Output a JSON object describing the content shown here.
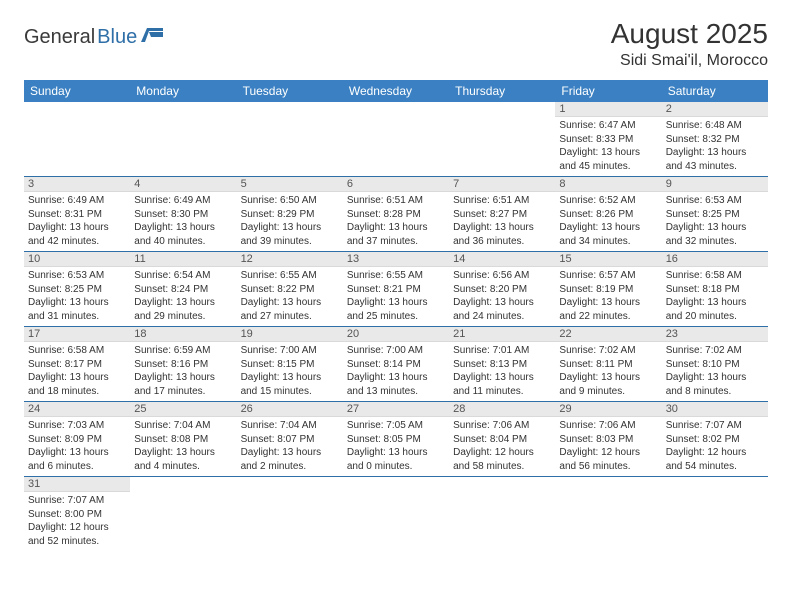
{
  "logo": {
    "text_dark": "General",
    "text_blue": "Blue"
  },
  "title": "August 2025",
  "location": "Sidi Smai'il, Morocco",
  "colors": {
    "header_bg": "#3a80c2",
    "header_text": "#ffffff",
    "daynum_bg": "#e9e9e9",
    "week_separator": "#2f6fa8",
    "logo_dark": "#3a3a3a",
    "logo_blue": "#2f6fa8"
  },
  "weekdays": [
    "Sunday",
    "Monday",
    "Tuesday",
    "Wednesday",
    "Thursday",
    "Friday",
    "Saturday"
  ],
  "weeks": [
    [
      {
        "empty": true
      },
      {
        "empty": true
      },
      {
        "empty": true
      },
      {
        "empty": true
      },
      {
        "empty": true
      },
      {
        "num": "1",
        "sunrise": "Sunrise: 6:47 AM",
        "sunset": "Sunset: 8:33 PM",
        "day1": "Daylight: 13 hours",
        "day2": "and 45 minutes."
      },
      {
        "num": "2",
        "sunrise": "Sunrise: 6:48 AM",
        "sunset": "Sunset: 8:32 PM",
        "day1": "Daylight: 13 hours",
        "day2": "and 43 minutes."
      }
    ],
    [
      {
        "num": "3",
        "sunrise": "Sunrise: 6:49 AM",
        "sunset": "Sunset: 8:31 PM",
        "day1": "Daylight: 13 hours",
        "day2": "and 42 minutes."
      },
      {
        "num": "4",
        "sunrise": "Sunrise: 6:49 AM",
        "sunset": "Sunset: 8:30 PM",
        "day1": "Daylight: 13 hours",
        "day2": "and 40 minutes."
      },
      {
        "num": "5",
        "sunrise": "Sunrise: 6:50 AM",
        "sunset": "Sunset: 8:29 PM",
        "day1": "Daylight: 13 hours",
        "day2": "and 39 minutes."
      },
      {
        "num": "6",
        "sunrise": "Sunrise: 6:51 AM",
        "sunset": "Sunset: 8:28 PM",
        "day1": "Daylight: 13 hours",
        "day2": "and 37 minutes."
      },
      {
        "num": "7",
        "sunrise": "Sunrise: 6:51 AM",
        "sunset": "Sunset: 8:27 PM",
        "day1": "Daylight: 13 hours",
        "day2": "and 36 minutes."
      },
      {
        "num": "8",
        "sunrise": "Sunrise: 6:52 AM",
        "sunset": "Sunset: 8:26 PM",
        "day1": "Daylight: 13 hours",
        "day2": "and 34 minutes."
      },
      {
        "num": "9",
        "sunrise": "Sunrise: 6:53 AM",
        "sunset": "Sunset: 8:25 PM",
        "day1": "Daylight: 13 hours",
        "day2": "and 32 minutes."
      }
    ],
    [
      {
        "num": "10",
        "sunrise": "Sunrise: 6:53 AM",
        "sunset": "Sunset: 8:25 PM",
        "day1": "Daylight: 13 hours",
        "day2": "and 31 minutes."
      },
      {
        "num": "11",
        "sunrise": "Sunrise: 6:54 AM",
        "sunset": "Sunset: 8:24 PM",
        "day1": "Daylight: 13 hours",
        "day2": "and 29 minutes."
      },
      {
        "num": "12",
        "sunrise": "Sunrise: 6:55 AM",
        "sunset": "Sunset: 8:22 PM",
        "day1": "Daylight: 13 hours",
        "day2": "and 27 minutes."
      },
      {
        "num": "13",
        "sunrise": "Sunrise: 6:55 AM",
        "sunset": "Sunset: 8:21 PM",
        "day1": "Daylight: 13 hours",
        "day2": "and 25 minutes."
      },
      {
        "num": "14",
        "sunrise": "Sunrise: 6:56 AM",
        "sunset": "Sunset: 8:20 PM",
        "day1": "Daylight: 13 hours",
        "day2": "and 24 minutes."
      },
      {
        "num": "15",
        "sunrise": "Sunrise: 6:57 AM",
        "sunset": "Sunset: 8:19 PM",
        "day1": "Daylight: 13 hours",
        "day2": "and 22 minutes."
      },
      {
        "num": "16",
        "sunrise": "Sunrise: 6:58 AM",
        "sunset": "Sunset: 8:18 PM",
        "day1": "Daylight: 13 hours",
        "day2": "and 20 minutes."
      }
    ],
    [
      {
        "num": "17",
        "sunrise": "Sunrise: 6:58 AM",
        "sunset": "Sunset: 8:17 PM",
        "day1": "Daylight: 13 hours",
        "day2": "and 18 minutes."
      },
      {
        "num": "18",
        "sunrise": "Sunrise: 6:59 AM",
        "sunset": "Sunset: 8:16 PM",
        "day1": "Daylight: 13 hours",
        "day2": "and 17 minutes."
      },
      {
        "num": "19",
        "sunrise": "Sunrise: 7:00 AM",
        "sunset": "Sunset: 8:15 PM",
        "day1": "Daylight: 13 hours",
        "day2": "and 15 minutes."
      },
      {
        "num": "20",
        "sunrise": "Sunrise: 7:00 AM",
        "sunset": "Sunset: 8:14 PM",
        "day1": "Daylight: 13 hours",
        "day2": "and 13 minutes."
      },
      {
        "num": "21",
        "sunrise": "Sunrise: 7:01 AM",
        "sunset": "Sunset: 8:13 PM",
        "day1": "Daylight: 13 hours",
        "day2": "and 11 minutes."
      },
      {
        "num": "22",
        "sunrise": "Sunrise: 7:02 AM",
        "sunset": "Sunset: 8:11 PM",
        "day1": "Daylight: 13 hours",
        "day2": "and 9 minutes."
      },
      {
        "num": "23",
        "sunrise": "Sunrise: 7:02 AM",
        "sunset": "Sunset: 8:10 PM",
        "day1": "Daylight: 13 hours",
        "day2": "and 8 minutes."
      }
    ],
    [
      {
        "num": "24",
        "sunrise": "Sunrise: 7:03 AM",
        "sunset": "Sunset: 8:09 PM",
        "day1": "Daylight: 13 hours",
        "day2": "and 6 minutes."
      },
      {
        "num": "25",
        "sunrise": "Sunrise: 7:04 AM",
        "sunset": "Sunset: 8:08 PM",
        "day1": "Daylight: 13 hours",
        "day2": "and 4 minutes."
      },
      {
        "num": "26",
        "sunrise": "Sunrise: 7:04 AM",
        "sunset": "Sunset: 8:07 PM",
        "day1": "Daylight: 13 hours",
        "day2": "and 2 minutes."
      },
      {
        "num": "27",
        "sunrise": "Sunrise: 7:05 AM",
        "sunset": "Sunset: 8:05 PM",
        "day1": "Daylight: 13 hours",
        "day2": "and 0 minutes."
      },
      {
        "num": "28",
        "sunrise": "Sunrise: 7:06 AM",
        "sunset": "Sunset: 8:04 PM",
        "day1": "Daylight: 12 hours",
        "day2": "and 58 minutes."
      },
      {
        "num": "29",
        "sunrise": "Sunrise: 7:06 AM",
        "sunset": "Sunset: 8:03 PM",
        "day1": "Daylight: 12 hours",
        "day2": "and 56 minutes."
      },
      {
        "num": "30",
        "sunrise": "Sunrise: 7:07 AM",
        "sunset": "Sunset: 8:02 PM",
        "day1": "Daylight: 12 hours",
        "day2": "and 54 minutes."
      }
    ],
    [
      {
        "num": "31",
        "sunrise": "Sunrise: 7:07 AM",
        "sunset": "Sunset: 8:00 PM",
        "day1": "Daylight: 12 hours",
        "day2": "and 52 minutes."
      },
      {
        "empty": true
      },
      {
        "empty": true
      },
      {
        "empty": true
      },
      {
        "empty": true
      },
      {
        "empty": true
      },
      {
        "empty": true
      }
    ]
  ]
}
